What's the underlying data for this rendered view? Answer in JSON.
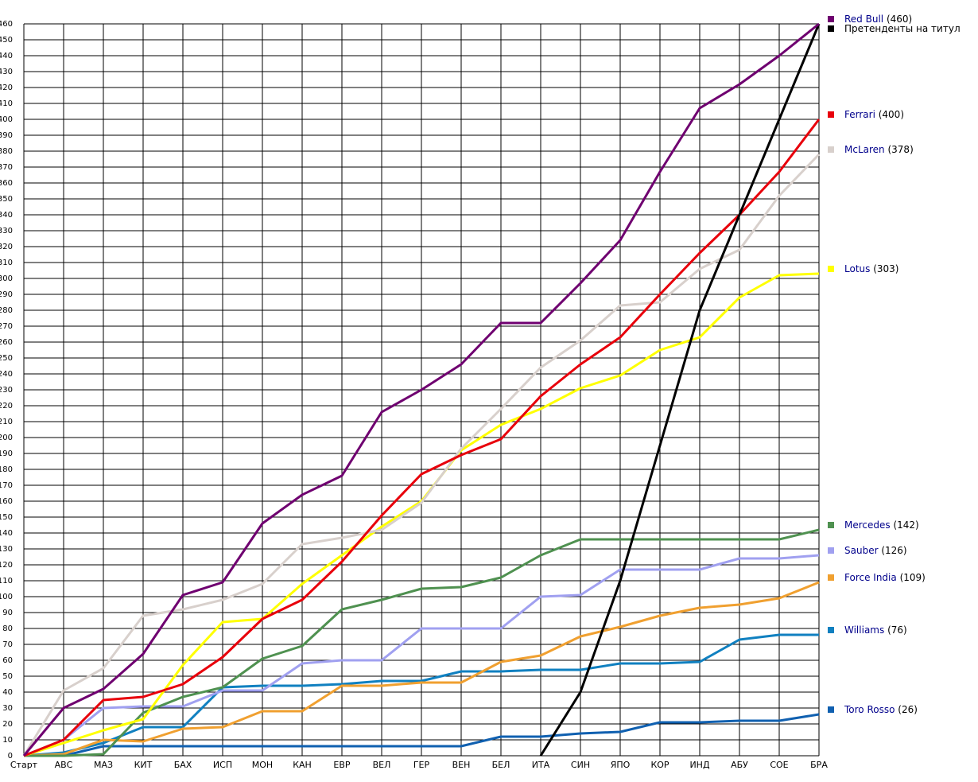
{
  "chart_data": {
    "type": "line",
    "categories": [
      "Старт",
      "АВС",
      "МАЗ",
      "КИТ",
      "БАХ",
      "ИСП",
      "МОН",
      "КАН",
      "ЕВР",
      "ВЕЛ",
      "ГЕР",
      "ВЕН",
      "БЕЛ",
      "ИТА",
      "СИН",
      "ЯПО",
      "КОР",
      "ИНД",
      "АБУ",
      "СОЕ",
      "БРА"
    ],
    "series": [
      {
        "name": "Red Bull",
        "total_label": "(460)",
        "color": "#6f0070",
        "values": [
          0,
          30,
          42,
          64,
          101,
          109,
          146,
          164,
          176,
          216,
          230,
          246,
          272,
          272,
          297,
          324,
          367,
          407,
          422,
          440,
          460
        ]
      },
      {
        "name": "Претенденты на титул",
        "color": "#000000",
        "values": [
          null,
          null,
          null,
          null,
          null,
          null,
          null,
          null,
          null,
          null,
          null,
          null,
          null,
          0,
          40,
          110,
          195,
          280,
          340,
          400,
          460
        ]
      },
      {
        "name": "Ferrari",
        "total_label": "(400)",
        "color": "#e8000b",
        "values": [
          0,
          10,
          35,
          37,
          45,
          62,
          86,
          98,
          122,
          151,
          177,
          189,
          199,
          226,
          246,
          263,
          290,
          316,
          340,
          367,
          400
        ]
      },
      {
        "name": "McLaren",
        "total_label": "(378)",
        "color": "#d8d0cc",
        "values": [
          0,
          41,
          55,
          88,
          92,
          98,
          108,
          133,
          137,
          142,
          159,
          193,
          218,
          244,
          261,
          283,
          285,
          306,
          318,
          352,
          378
        ]
      },
      {
        "name": "Lotus",
        "total_label": "(303)",
        "color": "#ffff00",
        "values": [
          0,
          8,
          16,
          23,
          57,
          84,
          86,
          108,
          126,
          144,
          160,
          192,
          208,
          218,
          231,
          239,
          255,
          263,
          288,
          302,
          303
        ]
      },
      {
        "name": "Mercedes",
        "total_label": "(142)",
        "color": "#4f9150",
        "values": [
          0,
          0,
          1,
          27,
          37,
          43,
          61,
          69,
          92,
          98,
          105,
          106,
          112,
          126,
          136,
          136,
          136,
          136,
          136,
          136,
          142
        ]
      },
      {
        "name": "Sauber",
        "total_label": "(126)",
        "color": "#a0a0f0",
        "values": [
          0,
          10,
          30,
          31,
          31,
          41,
          41,
          58,
          60,
          60,
          80,
          80,
          80,
          100,
          101,
          117,
          117,
          117,
          124,
          124,
          126
        ]
      },
      {
        "name": "Force India",
        "total_label": "(109)",
        "color": "#f0a030",
        "values": [
          0,
          1,
          10,
          9,
          17,
          18,
          28,
          28,
          44,
          44,
          46,
          46,
          59,
          63,
          75,
          81,
          88,
          93,
          95,
          99,
          109
        ]
      },
      {
        "name": "Williams",
        "total_label": "(76)",
        "color": "#1080c0",
        "values": [
          0,
          2,
          8,
          18,
          18,
          43,
          44,
          44,
          45,
          47,
          47,
          53,
          53,
          54,
          54,
          58,
          58,
          59,
          73,
          76,
          76
        ]
      },
      {
        "name": "Toro Rosso",
        "total_label": "(26)",
        "color": "#1060b0",
        "values": [
          0,
          0,
          6,
          6,
          6,
          6,
          6,
          6,
          6,
          6,
          6,
          6,
          12,
          12,
          14,
          15,
          21,
          21,
          22,
          22,
          26
        ]
      }
    ],
    "ylim": [
      0,
      460
    ],
    "yticks": [
      0,
      10,
      20,
      30,
      40,
      50,
      60,
      70,
      80,
      90,
      100,
      110,
      120,
      130,
      140,
      150,
      160,
      170,
      180,
      190,
      200,
      210,
      220,
      230,
      240,
      250,
      260,
      270,
      280,
      290,
      300,
      310,
      320,
      330,
      340,
      350,
      360,
      370,
      380,
      390,
      400,
      410,
      420,
      430,
      440,
      450,
      460
    ],
    "grid": true
  }
}
